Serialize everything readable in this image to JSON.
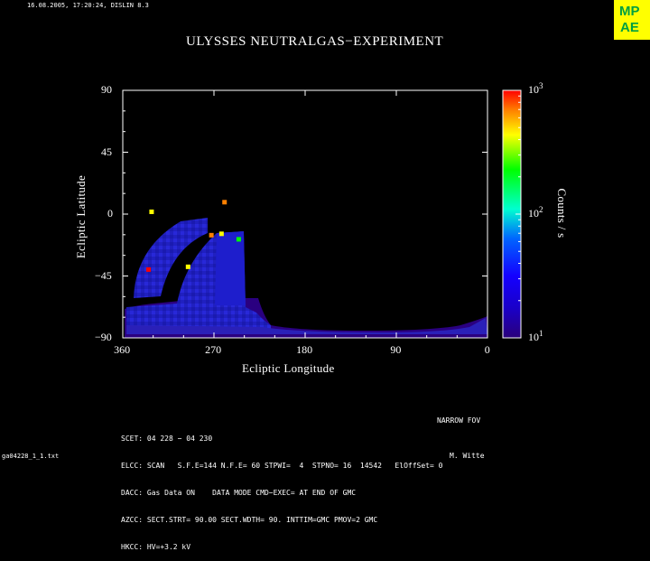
{
  "header": {
    "timestamp": "16.08.2005, 17:20:24, DISLIN 8.3",
    "logo_top": "MP",
    "logo_bottom": "AE"
  },
  "chart_data": {
    "type": "heatmap",
    "title": "ULYSSES NEUTRALGAS−EXPERIMENT",
    "xlabel": "Ecliptic Longitude",
    "ylabel": "Ecliptic Latitude",
    "xlim": [
      360,
      0
    ],
    "ylim": [
      -90,
      90
    ],
    "x_ticks": [
      "360",
      "270",
      "180",
      "90",
      "0"
    ],
    "y_ticks": [
      "90",
      "45",
      "0",
      "−45",
      "−90"
    ],
    "colorbar": {
      "label": "Counts / s",
      "scale": "log",
      "range": [
        10,
        1000
      ],
      "ticks": [
        {
          "base": "10",
          "exp": "3",
          "value": 1000
        },
        {
          "base": "10",
          "exp": "2",
          "value": 100
        },
        {
          "base": "10",
          "exp": "1",
          "value": 10
        }
      ],
      "colors": [
        "#2a007a",
        "#1400ff",
        "#0064ff",
        "#00ffd0",
        "#00ff00",
        "#ffff00",
        "#ff8000",
        "#ff0000"
      ]
    },
    "hotspots": [
      {
        "lon": 332,
        "lat": 2,
        "value": 350
      },
      {
        "lon": 335,
        "lat": -40,
        "value": 900
      },
      {
        "lon": 273,
        "lat": -15,
        "value": 400
      },
      {
        "lon": 263,
        "lat": -14,
        "value": 300
      },
      {
        "lon": 246,
        "lat": -18,
        "value": 150
      },
      {
        "lon": 260,
        "lat": 9,
        "value": 600
      },
      {
        "lon": 296,
        "lat": -38,
        "value": 200
      }
    ]
  },
  "footer": {
    "lines": [
      "SCET: 04 228 − 04 230",
      "ELCC: SCAN   S.F.E=144 N.F.E= 60 STPWI=  4  STPNO= 16  14542   ElOffSet= 0",
      "DACC: Gas Data ON    DATA MODE CMD−EXEC= AT END OF GMC",
      "AZCC: SECT.STRT= 90.00 SECT.WDTH= 90. INTTIM=GMC PMOV=2 GMC",
      "HKCC: HV=+3.2 kV"
    ],
    "fov": "NARROW FOV",
    "author": "M. Witte",
    "filename": "ga04228_1_1.txt"
  }
}
